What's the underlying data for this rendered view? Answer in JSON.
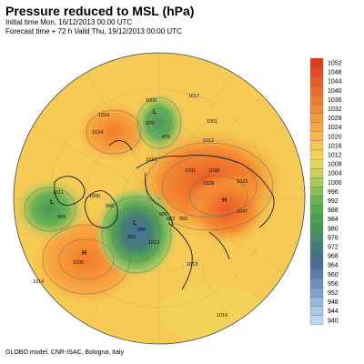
{
  "header": {
    "title": "Pressure reduced to MSL (hPa)",
    "initial_time": "Initial time Mon, 16/12/2013 00:00 UTC",
    "forecast_time": "Forecast time + 72 h Valid Thu, 19/12/2013 00:00 UTC"
  },
  "footer": {
    "credit": "GLOBO model, CNR-ISAC, Bologna, Italy"
  },
  "legend": {
    "levels": [
      "1052",
      "1048",
      "1044",
      "1040",
      "1036",
      "1032",
      "1028",
      "1024",
      "1020",
      "1016",
      "1012",
      "1008",
      "1004",
      "1000",
      "996",
      "992",
      "988",
      "984",
      "980",
      "976",
      "972",
      "968",
      "964",
      "960",
      "956",
      "952",
      "948",
      "944",
      "940"
    ],
    "colors": [
      "#e23a1c",
      "#e8481e",
      "#ec5a22",
      "#f06a26",
      "#f37a2a",
      "#f58a30",
      "#f79a38",
      "#f8a840",
      "#f9b74a",
      "#f7c652",
      "#f2d35a",
      "#e2d662",
      "#c8d264",
      "#a9c95e",
      "#88bd58",
      "#6cb454",
      "#58a952",
      "#4d9f54",
      "#47955a",
      "#448a66",
      "#427e76",
      "#427388",
      "#4a6e9c",
      "#5a7cb2",
      "#6a8fc4",
      "#7ea3d2",
      "#94b7de",
      "#a8c8e8",
      "#bcd8f0"
    ]
  },
  "map": {
    "pressure_labels": [
      "1000",
      "979",
      "976",
      "1024",
      "1034",
      "1017",
      "1001",
      "1012",
      "1016",
      "1031",
      "1038",
      "1028",
      "1023",
      "1047",
      "1000",
      "998",
      "1011",
      "999",
      "996",
      "993",
      "985",
      "1013",
      "1035",
      "1013",
      "1014",
      "1016",
      "992",
      "983"
    ],
    "lows": [
      "L",
      "L",
      "L"
    ],
    "highs": [
      "H",
      "H"
    ]
  }
}
